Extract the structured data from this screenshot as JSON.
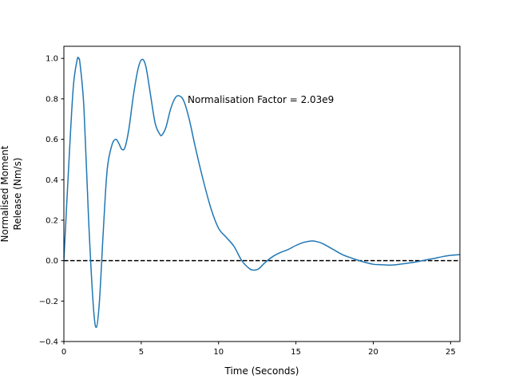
{
  "chart_data": {
    "type": "line",
    "title": "",
    "xlabel": "Time (Seconds)",
    "ylabel_lines": [
      "Normalised Moment",
      "Release (Nm/s)"
    ],
    "xlim": [
      0,
      25.6
    ],
    "ylim": [
      -0.4,
      1.06
    ],
    "xticks": [
      0,
      5,
      10,
      15,
      20,
      25
    ],
    "yticks": [
      -0.4,
      -0.2,
      0.0,
      0.2,
      0.4,
      0.6,
      0.8,
      1.0
    ],
    "xtick_labels": [
      "0",
      "5",
      "10",
      "15",
      "20",
      "25"
    ],
    "ytick_labels": [
      "−0.4",
      "−0.2",
      "0.0",
      "0.2",
      "0.4",
      "0.6",
      "0.8",
      "1.0"
    ],
    "grid": false,
    "annotation": {
      "text": "Normalisation Factor = 2.03e9",
      "x": 8.0,
      "y": 0.8
    },
    "reference_line": {
      "y": 0.0,
      "style": "dashed",
      "color": "#000000"
    },
    "series": [
      {
        "color": "#1f77b4",
        "x": [
          0,
          0.3,
          0.6,
          0.85,
          0.95,
          1.05,
          1.3,
          1.6,
          1.9,
          2.1,
          2.3,
          2.55,
          2.8,
          3.1,
          3.35,
          3.55,
          3.75,
          3.95,
          4.2,
          4.5,
          4.8,
          5.05,
          5.3,
          5.6,
          5.9,
          6.2,
          6.35,
          6.6,
          6.9,
          7.2,
          7.45,
          7.75,
          8.1,
          8.5,
          9.0,
          9.5,
          10.0,
          10.5,
          11.0,
          11.5,
          12.0,
          12.3,
          12.6,
          13.0,
          13.5,
          14.0,
          14.5,
          15.0,
          15.5,
          16.0,
          16.3,
          16.7,
          17.3,
          18.0,
          18.7,
          19.3,
          20.0,
          20.5,
          21.0,
          21.5,
          22.0,
          22.5,
          23.0,
          23.5,
          24.0,
          24.5,
          25.0,
          25.6
        ],
        "y": [
          0.0,
          0.45,
          0.85,
          0.99,
          1.0,
          0.97,
          0.75,
          0.2,
          -0.22,
          -0.33,
          -0.2,
          0.15,
          0.45,
          0.57,
          0.6,
          0.58,
          0.55,
          0.56,
          0.65,
          0.82,
          0.95,
          0.995,
          0.96,
          0.82,
          0.68,
          0.625,
          0.622,
          0.66,
          0.75,
          0.805,
          0.815,
          0.79,
          0.7,
          0.56,
          0.4,
          0.26,
          0.16,
          0.115,
          0.07,
          0.0,
          -0.04,
          -0.047,
          -0.04,
          -0.01,
          0.02,
          0.04,
          0.055,
          0.075,
          0.09,
          0.097,
          0.095,
          0.085,
          0.06,
          0.03,
          0.01,
          -0.005,
          -0.018,
          -0.02,
          -0.022,
          -0.02,
          -0.015,
          -0.01,
          -0.003,
          0.005,
          0.012,
          0.02,
          0.026,
          0.03
        ]
      }
    ]
  }
}
